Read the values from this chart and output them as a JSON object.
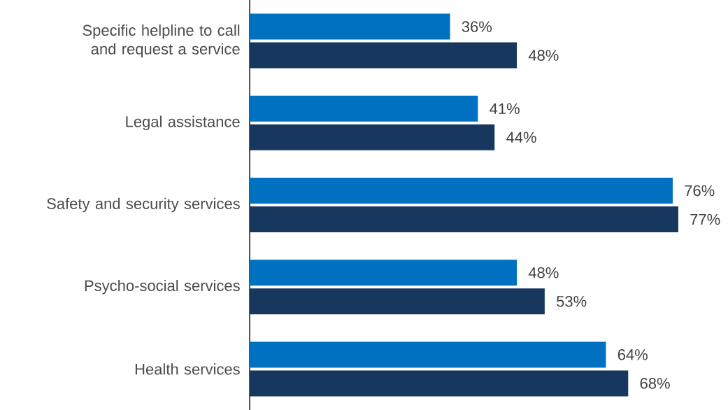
{
  "chart_data": {
    "type": "bar",
    "orientation": "horizontal",
    "categories": [
      "Specific helpline to call and request a service",
      "Legal assistance",
      "Safety and security services",
      "Psycho-social services",
      "Health services"
    ],
    "series": [
      {
        "color": "#0070c0",
        "values": [
          36,
          41,
          76,
          48,
          64
        ],
        "value_labels": [
          "36%",
          "41%",
          "76%",
          "48%",
          "64%"
        ]
      },
      {
        "color": "#17375e",
        "values": [
          48,
          44,
          77,
          53,
          68
        ],
        "value_labels": [
          "48%",
          "44%",
          "77%",
          "53%",
          "68%"
        ]
      }
    ]
  }
}
